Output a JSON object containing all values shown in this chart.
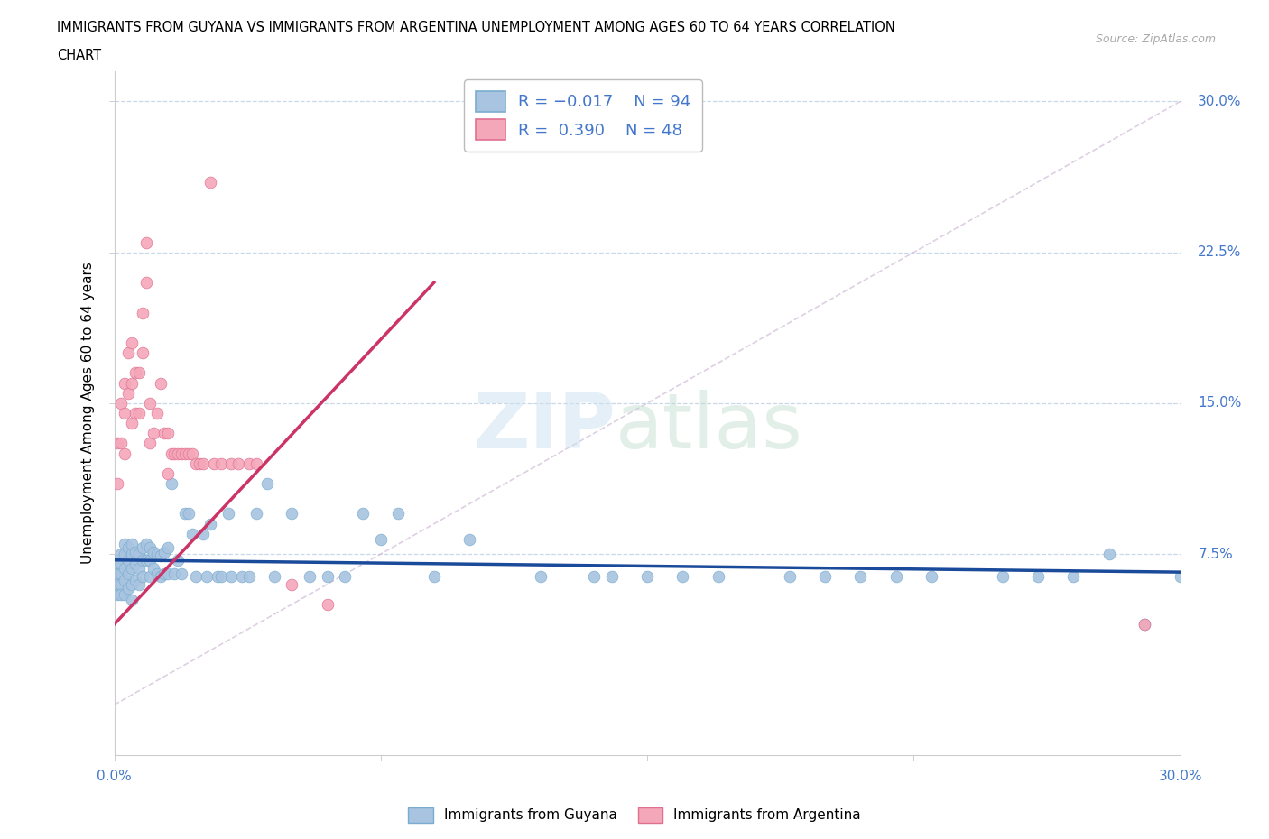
{
  "title_line1": "IMMIGRANTS FROM GUYANA VS IMMIGRANTS FROM ARGENTINA UNEMPLOYMENT AMONG AGES 60 TO 64 YEARS CORRELATION",
  "title_line2": "CHART",
  "source_text": "Source: ZipAtlas.com",
  "ylabel": "Unemployment Among Ages 60 to 64 years",
  "color_guyana": "#a8c4e0",
  "color_argentina": "#f4a7b9",
  "color_guyana_line": "#1a4a9a",
  "color_argentina_line": "#cc3366",
  "color_diagonal": "#c8b0d0",
  "color_axis_label": "#4477cc",
  "color_grid": "#c8d8e8",
  "xlim": [
    0.0,
    0.3
  ],
  "ylim": [
    -0.025,
    0.315
  ],
  "guyana_line_slope": -0.02,
  "guyana_line_intercept": 0.072,
  "argentina_line_x0": 0.0,
  "argentina_line_y0": 0.04,
  "argentina_line_x1": 0.09,
  "argentina_line_y1": 0.21,
  "guyana_x": [
    0.001,
    0.001,
    0.001,
    0.001,
    0.001,
    0.002,
    0.002,
    0.002,
    0.002,
    0.002,
    0.003,
    0.003,
    0.003,
    0.003,
    0.003,
    0.004,
    0.004,
    0.004,
    0.004,
    0.005,
    0.005,
    0.005,
    0.005,
    0.005,
    0.006,
    0.006,
    0.006,
    0.007,
    0.007,
    0.007,
    0.008,
    0.008,
    0.008,
    0.009,
    0.009,
    0.01,
    0.01,
    0.01,
    0.011,
    0.011,
    0.012,
    0.012,
    0.013,
    0.013,
    0.014,
    0.014,
    0.015,
    0.015,
    0.016,
    0.017,
    0.018,
    0.019,
    0.02,
    0.021,
    0.022,
    0.023,
    0.025,
    0.026,
    0.027,
    0.029,
    0.03,
    0.032,
    0.033,
    0.036,
    0.038,
    0.04,
    0.043,
    0.045,
    0.05,
    0.055,
    0.06,
    0.065,
    0.07,
    0.075,
    0.08,
    0.09,
    0.1,
    0.12,
    0.14,
    0.16,
    0.19,
    0.2,
    0.22,
    0.25,
    0.27,
    0.28,
    0.29,
    0.3,
    0.15,
    0.17,
    0.21,
    0.23,
    0.26,
    0.135
  ],
  "guyana_y": [
    0.072,
    0.068,
    0.065,
    0.06,
    0.055,
    0.075,
    0.07,
    0.065,
    0.06,
    0.055,
    0.08,
    0.075,
    0.068,
    0.062,
    0.055,
    0.078,
    0.072,
    0.065,
    0.058,
    0.08,
    0.075,
    0.068,
    0.06,
    0.052,
    0.076,
    0.07,
    0.062,
    0.075,
    0.068,
    0.06,
    0.078,
    0.072,
    0.064,
    0.08,
    0.072,
    0.078,
    0.072,
    0.064,
    0.076,
    0.068,
    0.075,
    0.065,
    0.074,
    0.064,
    0.076,
    0.065,
    0.078,
    0.065,
    0.11,
    0.065,
    0.072,
    0.065,
    0.095,
    0.095,
    0.085,
    0.064,
    0.085,
    0.064,
    0.09,
    0.064,
    0.064,
    0.095,
    0.064,
    0.064,
    0.064,
    0.095,
    0.11,
    0.064,
    0.095,
    0.064,
    0.064,
    0.064,
    0.095,
    0.082,
    0.095,
    0.064,
    0.082,
    0.064,
    0.064,
    0.064,
    0.064,
    0.064,
    0.064,
    0.064,
    0.064,
    0.075,
    0.04,
    0.064,
    0.064,
    0.064,
    0.064,
    0.064,
    0.064,
    0.064
  ],
  "argentina_x": [
    0.001,
    0.001,
    0.002,
    0.002,
    0.003,
    0.003,
    0.003,
    0.004,
    0.004,
    0.005,
    0.005,
    0.005,
    0.006,
    0.006,
    0.007,
    0.007,
    0.008,
    0.008,
    0.009,
    0.009,
    0.01,
    0.01,
    0.011,
    0.012,
    0.013,
    0.014,
    0.015,
    0.015,
    0.016,
    0.017,
    0.018,
    0.019,
    0.02,
    0.021,
    0.022,
    0.023,
    0.024,
    0.025,
    0.027,
    0.028,
    0.03,
    0.033,
    0.035,
    0.038,
    0.04,
    0.05,
    0.06,
    0.29
  ],
  "argentina_y": [
    0.13,
    0.11,
    0.15,
    0.13,
    0.16,
    0.145,
    0.125,
    0.175,
    0.155,
    0.18,
    0.16,
    0.14,
    0.165,
    0.145,
    0.165,
    0.145,
    0.195,
    0.175,
    0.23,
    0.21,
    0.15,
    0.13,
    0.135,
    0.145,
    0.16,
    0.135,
    0.135,
    0.115,
    0.125,
    0.125,
    0.125,
    0.125,
    0.125,
    0.125,
    0.125,
    0.12,
    0.12,
    0.12,
    0.26,
    0.12,
    0.12,
    0.12,
    0.12,
    0.12,
    0.12,
    0.06,
    0.05,
    0.04
  ]
}
